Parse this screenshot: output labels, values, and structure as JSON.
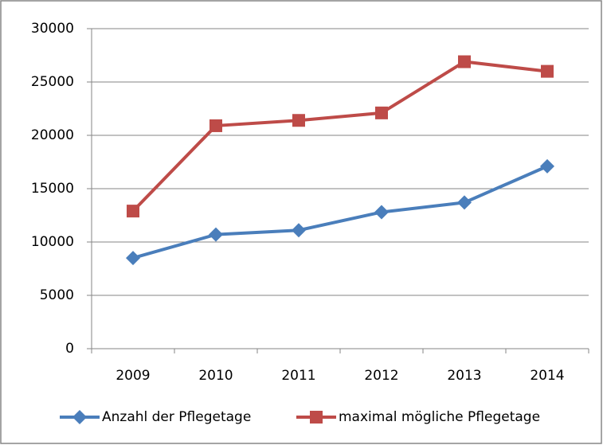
{
  "chart_data": {
    "type": "line",
    "categories": [
      "2009",
      "2010",
      "2011",
      "2012",
      "2013",
      "2014"
    ],
    "series": [
      {
        "name": "Anzahl der Pflegetage",
        "color": "#4a7ebb",
        "marker": "diamond",
        "values": [
          8500,
          10700,
          11100,
          12800,
          13700,
          17100
        ]
      },
      {
        "name": "maximal mögliche Pflegetage",
        "color": "#be4b48",
        "marker": "square",
        "values": [
          12900,
          20900,
          21400,
          22100,
          26900,
          26000
        ]
      }
    ],
    "ylim": [
      0,
      30000
    ],
    "yticks": [
      0,
      5000,
      10000,
      15000,
      20000,
      25000,
      30000
    ],
    "grid": true,
    "legend": "bottom"
  }
}
